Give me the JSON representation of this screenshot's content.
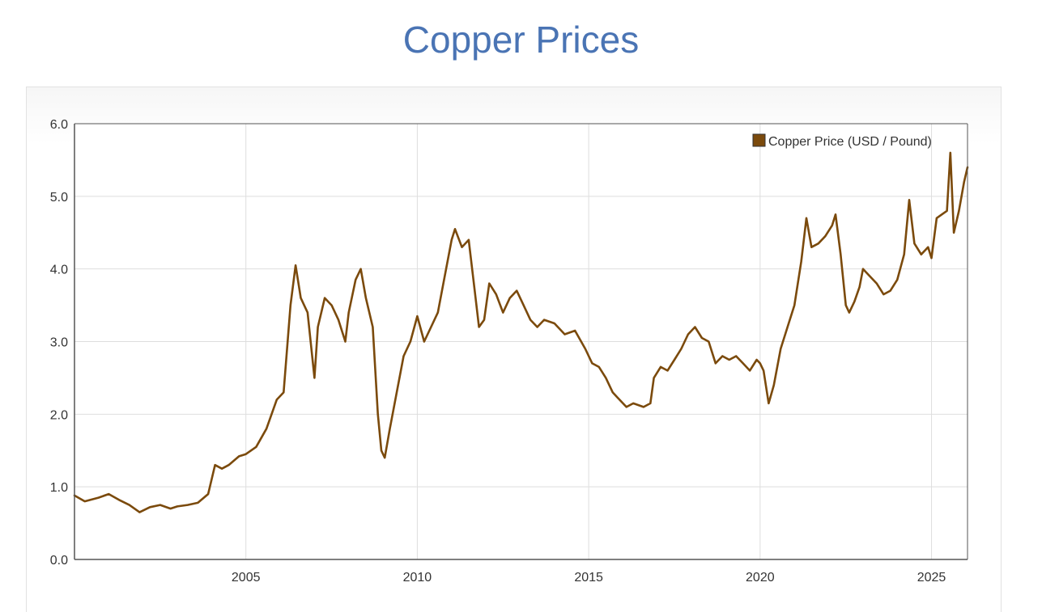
{
  "page": {
    "title": "Copper Prices"
  },
  "colors": {
    "title": "#4a74b4",
    "series": "#7b4a0c",
    "grid": "#dedede",
    "axis": "#555555"
  },
  "chart_data": {
    "type": "line",
    "title": "",
    "xlabel": "",
    "ylabel": "",
    "xlim": [
      2000.0,
      2026.05
    ],
    "ylim": [
      0,
      6
    ],
    "grid": true,
    "legend_placement": "top-right",
    "x_ticks": [
      2005,
      2010,
      2015,
      2020,
      2025
    ],
    "x_tick_labels": [
      "2005",
      "2010",
      "2015",
      "2020",
      "2025"
    ],
    "y_ticks": [
      0,
      1,
      2,
      3,
      4,
      5,
      6
    ],
    "y_tick_labels": [
      "0.0",
      "1.0",
      "2.0",
      "3.0",
      "4.0",
      "5.0",
      "6.0"
    ],
    "series": [
      {
        "name": "Copper Price (USD / Pound)",
        "color": "#7b4a0c",
        "x": [
          2000.0,
          2000.3,
          2000.7,
          2001.0,
          2001.3,
          2001.6,
          2001.9,
          2002.2,
          2002.5,
          2002.8,
          2003.0,
          2003.3,
          2003.6,
          2003.9,
          2004.1,
          2004.3,
          2004.5,
          2004.8,
          2005.0,
          2005.3,
          2005.6,
          2005.9,
          2006.1,
          2006.3,
          2006.45,
          2006.6,
          2006.8,
          2007.0,
          2007.1,
          2007.3,
          2007.5,
          2007.7,
          2007.9,
          2008.0,
          2008.2,
          2008.35,
          2008.5,
          2008.7,
          2008.85,
          2008.95,
          2009.05,
          2009.2,
          2009.4,
          2009.6,
          2009.8,
          2010.0,
          2010.2,
          2010.4,
          2010.6,
          2010.8,
          2011.0,
          2011.1,
          2011.3,
          2011.5,
          2011.7,
          2011.8,
          2011.95,
          2012.1,
          2012.3,
          2012.5,
          2012.7,
          2012.9,
          2013.1,
          2013.3,
          2013.5,
          2013.7,
          2014.0,
          2014.3,
          2014.6,
          2014.9,
          2015.1,
          2015.3,
          2015.5,
          2015.7,
          2015.9,
          2016.1,
          2016.3,
          2016.6,
          2016.8,
          2016.9,
          2017.1,
          2017.3,
          2017.5,
          2017.7,
          2017.9,
          2018.1,
          2018.3,
          2018.5,
          2018.7,
          2018.9,
          2019.1,
          2019.3,
          2019.5,
          2019.7,
          2019.9,
          2020.0,
          2020.1,
          2020.25,
          2020.4,
          2020.6,
          2020.8,
          2021.0,
          2021.2,
          2021.35,
          2021.5,
          2021.7,
          2021.9,
          2022.1,
          2022.2,
          2022.35,
          2022.5,
          2022.6,
          2022.75,
          2022.9,
          2023.0,
          2023.2,
          2023.4,
          2023.6,
          2023.8,
          2024.0,
          2024.2,
          2024.35,
          2024.5,
          2024.7,
          2024.9,
          2025.0,
          2025.15,
          2025.3,
          2025.45,
          2025.55,
          2025.65,
          2025.8,
          2025.95,
          2026.05
        ],
        "values": [
          0.88,
          0.8,
          0.85,
          0.9,
          0.82,
          0.75,
          0.65,
          0.72,
          0.75,
          0.7,
          0.73,
          0.75,
          0.78,
          0.9,
          1.3,
          1.25,
          1.3,
          1.42,
          1.45,
          1.55,
          1.8,
          2.2,
          2.3,
          3.5,
          4.05,
          3.6,
          3.4,
          2.5,
          3.2,
          3.6,
          3.5,
          3.3,
          3.0,
          3.4,
          3.85,
          4.0,
          3.6,
          3.2,
          2.0,
          1.5,
          1.4,
          1.8,
          2.3,
          2.8,
          3.0,
          3.35,
          3.0,
          3.2,
          3.4,
          3.9,
          4.4,
          4.55,
          4.3,
          4.4,
          3.6,
          3.2,
          3.3,
          3.8,
          3.65,
          3.4,
          3.6,
          3.7,
          3.5,
          3.3,
          3.2,
          3.3,
          3.25,
          3.1,
          3.15,
          2.9,
          2.7,
          2.65,
          2.5,
          2.3,
          2.2,
          2.1,
          2.15,
          2.1,
          2.15,
          2.5,
          2.65,
          2.6,
          2.75,
          2.9,
          3.1,
          3.2,
          3.05,
          3.0,
          2.7,
          2.8,
          2.75,
          2.8,
          2.7,
          2.6,
          2.75,
          2.7,
          2.6,
          2.15,
          2.4,
          2.9,
          3.2,
          3.5,
          4.1,
          4.7,
          4.3,
          4.35,
          4.45,
          4.6,
          4.75,
          4.2,
          3.5,
          3.4,
          3.55,
          3.75,
          4.0,
          3.9,
          3.8,
          3.65,
          3.7,
          3.85,
          4.2,
          4.95,
          4.35,
          4.2,
          4.3,
          4.15,
          4.7,
          4.75,
          4.8,
          5.6,
          4.5,
          4.8,
          5.2,
          5.4
        ]
      }
    ]
  }
}
